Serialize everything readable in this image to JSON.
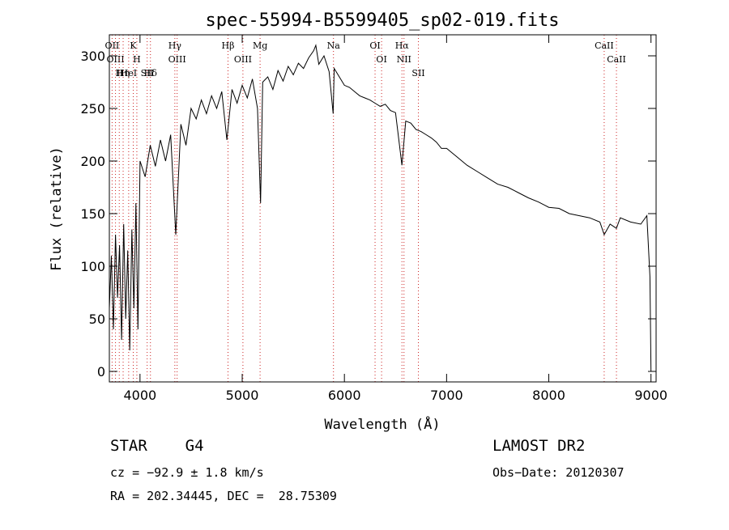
{
  "chart_data": {
    "type": "line",
    "title": "spec-55994-B5599405_sp02-019.fits",
    "xlabel": "Wavelength (Å)",
    "ylabel": "Flux (relative)",
    "xlim": [
      3700,
      9050
    ],
    "ylim": [
      -10,
      320
    ],
    "x_ticks": [
      4000,
      5000,
      6000,
      7000,
      8000,
      9000
    ],
    "y_ticks": [
      0,
      50,
      100,
      150,
      200,
      250,
      300
    ],
    "grid": false,
    "series": [
      {
        "x": [
          3700,
          3720,
          3740,
          3760,
          3780,
          3800,
          3820,
          3840,
          3860,
          3880,
          3900,
          3920,
          3940,
          3960,
          3980,
          4000,
          4050,
          4100,
          4150,
          4200,
          4250,
          4300,
          4350,
          4400,
          4450,
          4500,
          4550,
          4600,
          4650,
          4700,
          4750,
          4800,
          4850,
          4900,
          4950,
          5000,
          5050,
          5100,
          5150,
          5180,
          5200,
          5250,
          5300,
          5350,
          5400,
          5450,
          5500,
          5550,
          5600,
          5650,
          5700,
          5720,
          5750,
          5800,
          5850,
          5890,
          5900,
          5950,
          6000,
          6050,
          6100,
          6150,
          6200,
          6250,
          6300,
          6350,
          6400,
          6450,
          6500,
          6563,
          6600,
          6650,
          6700,
          6750,
          6800,
          6850,
          6900,
          6950,
          7000,
          7100,
          7200,
          7300,
          7400,
          7500,
          7600,
          7700,
          7800,
          7900,
          8000,
          8100,
          8200,
          8300,
          8400,
          8500,
          8542,
          8600,
          8662,
          8700,
          8800,
          8900,
          8960,
          8990,
          9000
        ],
        "values": [
          60,
          110,
          40,
          130,
          70,
          120,
          30,
          140,
          50,
          115,
          20,
          135,
          60,
          160,
          40,
          200,
          185,
          215,
          195,
          220,
          200,
          225,
          130,
          235,
          215,
          250,
          240,
          258,
          245,
          262,
          250,
          266,
          220,
          268,
          255,
          272,
          260,
          278,
          250,
          160,
          275,
          280,
          268,
          286,
          276,
          290,
          282,
          293,
          288,
          298,
          305,
          310,
          292,
          300,
          285,
          245,
          288,
          280,
          272,
          270,
          266,
          262,
          260,
          258,
          255,
          252,
          254,
          248,
          246,
          196,
          238,
          236,
          230,
          228,
          225,
          222,
          218,
          212,
          212,
          204,
          196,
          190,
          184,
          178,
          175,
          170,
          165,
          161,
          156,
          155,
          150,
          148,
          146,
          142,
          130,
          140,
          136,
          146,
          142,
          140,
          148,
          90,
          0
        ]
      }
    ],
    "line_markers": [
      {
        "label": "Hδ",
        "x": 4102
      },
      {
        "label": "K",
        "x": 3934
      },
      {
        "label": "H",
        "x": 3969
      },
      {
        "label": "Hγ",
        "x": 4341
      },
      {
        "label": "OIII",
        "x": 5007
      },
      {
        "label": "Hβ",
        "x": 4861
      },
      {
        "label": "Mg",
        "x": 5175
      },
      {
        "label": "Na",
        "x": 5893
      },
      {
        "label": "OI",
        "x": 6300
      },
      {
        "label": "OI",
        "x": 6364
      },
      {
        "label": "Hα",
        "x": 6563
      },
      {
        "label": "NII",
        "x": 6583
      },
      {
        "label": "SII",
        "x": 6724
      },
      {
        "label": "CaII",
        "x": 8542
      },
      {
        "label": "CaII",
        "x": 8662
      },
      {
        "label": "OIII",
        "x": 4363
      },
      {
        "label": "OII",
        "x": 3727
      },
      {
        "label": "HeI",
        "x": 3889
      },
      {
        "label": "SII",
        "x": 4070
      },
      {
        "label": "Hη",
        "x": 3835
      },
      {
        "label": "OIII",
        "x": 3760
      },
      {
        "label": "H",
        "x": 3797
      }
    ]
  },
  "info": {
    "star_label": "STAR",
    "star_class": "G4",
    "survey": "LAMOST DR2",
    "cz": "cz = −92.9 ± 1.8 km/s",
    "obs_date": "Obs−Date: 20120307",
    "coords": "RA = 202.34445, DEC =  28.75309"
  }
}
